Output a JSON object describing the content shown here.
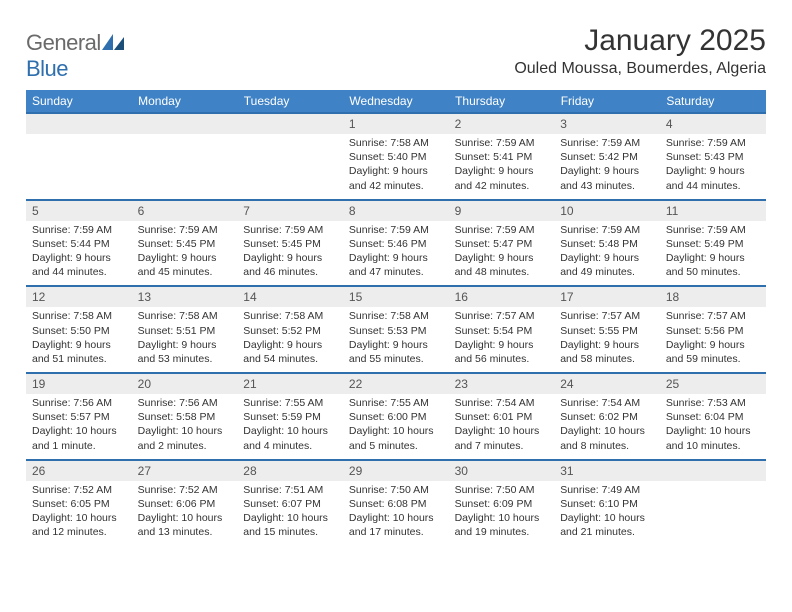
{
  "logo": {
    "text_a": "General",
    "text_b": "Blue"
  },
  "title": "January 2025",
  "location": "Ouled Moussa, Boumerdes, Algeria",
  "colors": {
    "header_bg": "#3f82c5",
    "header_text": "#ffffff",
    "rule": "#2f6fae",
    "daynum_bg": "#ededed",
    "body_bg": "#ffffff",
    "text": "#333333",
    "logo_gray": "#6a6a6a",
    "logo_blue": "#2f6fae"
  },
  "weekdays": [
    "Sunday",
    "Monday",
    "Tuesday",
    "Wednesday",
    "Thursday",
    "Friday",
    "Saturday"
  ],
  "weeks": [
    [
      null,
      null,
      null,
      {
        "n": "1",
        "sr": "7:58 AM",
        "ss": "5:40 PM",
        "dl": "9 hours and 42 minutes."
      },
      {
        "n": "2",
        "sr": "7:59 AM",
        "ss": "5:41 PM",
        "dl": "9 hours and 42 minutes."
      },
      {
        "n": "3",
        "sr": "7:59 AM",
        "ss": "5:42 PM",
        "dl": "9 hours and 43 minutes."
      },
      {
        "n": "4",
        "sr": "7:59 AM",
        "ss": "5:43 PM",
        "dl": "9 hours and 44 minutes."
      }
    ],
    [
      {
        "n": "5",
        "sr": "7:59 AM",
        "ss": "5:44 PM",
        "dl": "9 hours and 44 minutes."
      },
      {
        "n": "6",
        "sr": "7:59 AM",
        "ss": "5:45 PM",
        "dl": "9 hours and 45 minutes."
      },
      {
        "n": "7",
        "sr": "7:59 AM",
        "ss": "5:45 PM",
        "dl": "9 hours and 46 minutes."
      },
      {
        "n": "8",
        "sr": "7:59 AM",
        "ss": "5:46 PM",
        "dl": "9 hours and 47 minutes."
      },
      {
        "n": "9",
        "sr": "7:59 AM",
        "ss": "5:47 PM",
        "dl": "9 hours and 48 minutes."
      },
      {
        "n": "10",
        "sr": "7:59 AM",
        "ss": "5:48 PM",
        "dl": "9 hours and 49 minutes."
      },
      {
        "n": "11",
        "sr": "7:59 AM",
        "ss": "5:49 PM",
        "dl": "9 hours and 50 minutes."
      }
    ],
    [
      {
        "n": "12",
        "sr": "7:58 AM",
        "ss": "5:50 PM",
        "dl": "9 hours and 51 minutes."
      },
      {
        "n": "13",
        "sr": "7:58 AM",
        "ss": "5:51 PM",
        "dl": "9 hours and 53 minutes."
      },
      {
        "n": "14",
        "sr": "7:58 AM",
        "ss": "5:52 PM",
        "dl": "9 hours and 54 minutes."
      },
      {
        "n": "15",
        "sr": "7:58 AM",
        "ss": "5:53 PM",
        "dl": "9 hours and 55 minutes."
      },
      {
        "n": "16",
        "sr": "7:57 AM",
        "ss": "5:54 PM",
        "dl": "9 hours and 56 minutes."
      },
      {
        "n": "17",
        "sr": "7:57 AM",
        "ss": "5:55 PM",
        "dl": "9 hours and 58 minutes."
      },
      {
        "n": "18",
        "sr": "7:57 AM",
        "ss": "5:56 PM",
        "dl": "9 hours and 59 minutes."
      }
    ],
    [
      {
        "n": "19",
        "sr": "7:56 AM",
        "ss": "5:57 PM",
        "dl": "10 hours and 1 minute."
      },
      {
        "n": "20",
        "sr": "7:56 AM",
        "ss": "5:58 PM",
        "dl": "10 hours and 2 minutes."
      },
      {
        "n": "21",
        "sr": "7:55 AM",
        "ss": "5:59 PM",
        "dl": "10 hours and 4 minutes."
      },
      {
        "n": "22",
        "sr": "7:55 AM",
        "ss": "6:00 PM",
        "dl": "10 hours and 5 minutes."
      },
      {
        "n": "23",
        "sr": "7:54 AM",
        "ss": "6:01 PM",
        "dl": "10 hours and 7 minutes."
      },
      {
        "n": "24",
        "sr": "7:54 AM",
        "ss": "6:02 PM",
        "dl": "10 hours and 8 minutes."
      },
      {
        "n": "25",
        "sr": "7:53 AM",
        "ss": "6:04 PM",
        "dl": "10 hours and 10 minutes."
      }
    ],
    [
      {
        "n": "26",
        "sr": "7:52 AM",
        "ss": "6:05 PM",
        "dl": "10 hours and 12 minutes."
      },
      {
        "n": "27",
        "sr": "7:52 AM",
        "ss": "6:06 PM",
        "dl": "10 hours and 13 minutes."
      },
      {
        "n": "28",
        "sr": "7:51 AM",
        "ss": "6:07 PM",
        "dl": "10 hours and 15 minutes."
      },
      {
        "n": "29",
        "sr": "7:50 AM",
        "ss": "6:08 PM",
        "dl": "10 hours and 17 minutes."
      },
      {
        "n": "30",
        "sr": "7:50 AM",
        "ss": "6:09 PM",
        "dl": "10 hours and 19 minutes."
      },
      {
        "n": "31",
        "sr": "7:49 AM",
        "ss": "6:10 PM",
        "dl": "10 hours and 21 minutes."
      },
      null
    ]
  ],
  "labels": {
    "sunrise": "Sunrise:",
    "sunset": "Sunset:",
    "daylight": "Daylight:"
  }
}
